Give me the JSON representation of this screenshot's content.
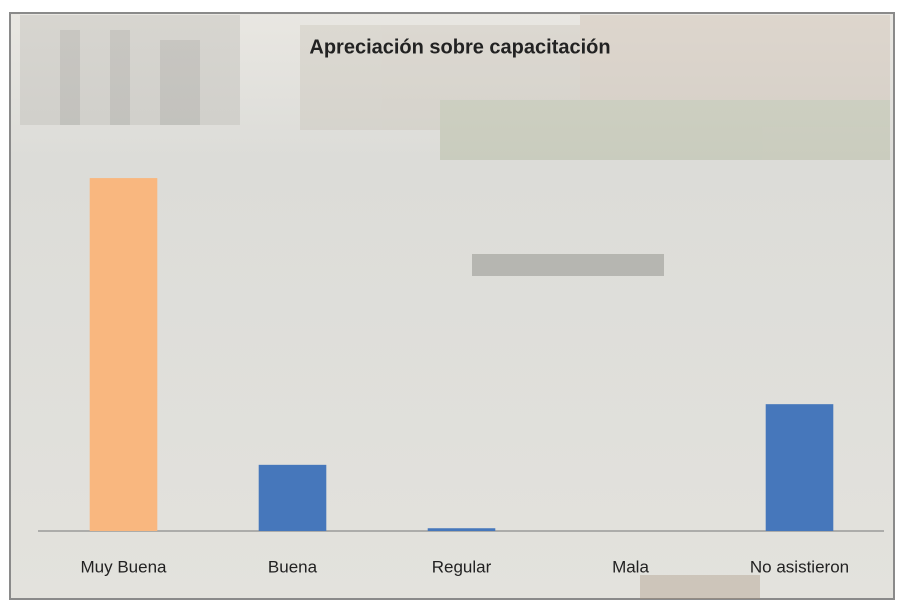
{
  "chart_data": {
    "type": "bar",
    "title": "Apreciación sobre capacitación",
    "categories": [
      "Muy Buena",
      "Buena",
      "Regular",
      "Mala",
      "No asistieron"
    ],
    "values": [
      64,
      12,
      0.5,
      0,
      23
    ],
    "colors": [
      "#f9b77f",
      "#4677bb",
      "#4677bb",
      "#4677bb",
      "#4677bb"
    ],
    "ylim": [
      0,
      70
    ]
  }
}
